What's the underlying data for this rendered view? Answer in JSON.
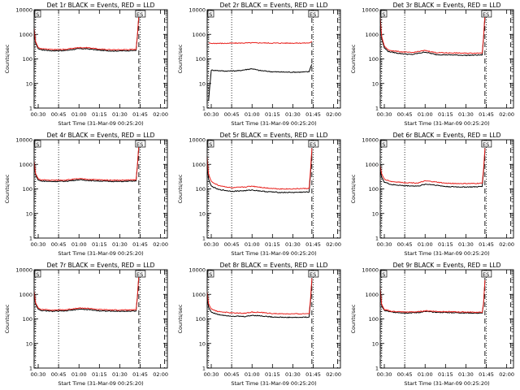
{
  "colors": {
    "events": "#000000",
    "lld": "#e8211d",
    "axes": "#000000",
    "background": "#ffffff"
  },
  "chart_data": [
    {
      "type": "line",
      "title": "Det 1r BLACK = Events, RED = LLD",
      "xlabel": "Start Time (31-Mar-09 00:25:20)",
      "ylabel": "Counts/sec",
      "x_tick_labels": [
        "00:30",
        "00:45",
        "01:00",
        "01:15",
        "01:30",
        "01:45",
        "02:00"
      ],
      "y_tick_labels": [
        "1",
        "10",
        "100",
        "1000",
        "10000"
      ],
      "y_scale": "log",
      "ylim": [
        1,
        10000
      ],
      "start_marker": "S",
      "end_marker": "ES",
      "series": [
        {
          "name": "Events",
          "x": [
            "00:27",
            "00:28",
            "00:30",
            "00:32",
            "00:40",
            "00:50",
            "01:00",
            "01:07",
            "01:15",
            "01:25",
            "01:35",
            "01:42",
            "01:43",
            "01:44"
          ],
          "values": [
            1500,
            450,
            260,
            235,
            215,
            220,
            260,
            255,
            225,
            210,
            215,
            220,
            900,
            5500
          ]
        },
        {
          "name": "LLD",
          "x": [
            "00:27",
            "00:28",
            "00:30",
            "00:32",
            "00:40",
            "00:50",
            "01:00",
            "01:07",
            "01:15",
            "01:25",
            "01:35",
            "01:42",
            "01:43",
            "01:44"
          ],
          "values": [
            1800,
            520,
            290,
            260,
            240,
            245,
            290,
            285,
            250,
            235,
            240,
            245,
            1000,
            6000
          ]
        }
      ]
    },
    {
      "type": "line",
      "title": "Det 2r BLACK = Events, RED = LLD",
      "xlabel": "Start Time (31-Mar-09 00:25:20)",
      "ylabel": "Counts/sec",
      "x_tick_labels": [
        "00:30",
        "00:45",
        "01:00",
        "01:15",
        "01:30",
        "01:45",
        "02:00"
      ],
      "y_tick_labels": [
        "1",
        "10",
        "100",
        "1000",
        "10000"
      ],
      "y_scale": "log",
      "ylim": [
        1,
        10000
      ],
      "start_marker": "S",
      "end_marker": "ES",
      "series": [
        {
          "name": "Events",
          "x": [
            "00:28",
            "00:30",
            "00:40",
            "00:50",
            "01:00",
            "01:05",
            "01:15",
            "01:25",
            "01:35",
            "01:42",
            "01:43",
            "01:44"
          ],
          "values": [
            2,
            35,
            32,
            33,
            40,
            34,
            30,
            29,
            29,
            30,
            45,
            60
          ]
        },
        {
          "name": "LLD",
          "x": [
            "00:28",
            "00:30",
            "00:40",
            "00:50",
            "01:00",
            "01:05",
            "01:15",
            "01:25",
            "01:35",
            "01:42",
            "01:43",
            "01:44"
          ],
          "values": [
            450,
            430,
            430,
            440,
            450,
            450,
            440,
            440,
            440,
            445,
            470,
            520
          ]
        }
      ]
    },
    {
      "type": "line",
      "title": "Det 3r BLACK = Events, RED = LLD",
      "xlabel": "Start Time (31-Mar-09 00:25:20)",
      "ylabel": "Counts/sec",
      "x_tick_labels": [
        "00:30",
        "00:45",
        "01:00",
        "01:15",
        "01:30",
        "01:45",
        "02:00"
      ],
      "y_tick_labels": [
        "1",
        "10",
        "100",
        "1000",
        "10000"
      ],
      "y_scale": "log",
      "ylim": [
        1,
        10000
      ],
      "start_marker": "S",
      "end_marker": "ES",
      "series": [
        {
          "name": "Events",
          "x": [
            "00:27",
            "00:28",
            "00:30",
            "00:33",
            "00:40",
            "00:50",
            "01:00",
            "01:08",
            "01:20",
            "01:30",
            "01:42",
            "01:43",
            "01:44"
          ],
          "values": [
            4000,
            700,
            280,
            200,
            170,
            150,
            190,
            150,
            145,
            140,
            145,
            700,
            5500
          ]
        },
        {
          "name": "LLD",
          "x": [
            "00:27",
            "00:28",
            "00:30",
            "00:33",
            "00:40",
            "00:50",
            "01:00",
            "01:08",
            "01:20",
            "01:30",
            "01:42",
            "01:43",
            "01:44"
          ],
          "values": [
            5000,
            850,
            330,
            230,
            200,
            180,
            220,
            180,
            175,
            170,
            175,
            800,
            6500
          ]
        }
      ]
    },
    {
      "type": "line",
      "title": "Det 4r BLACK = Events, RED = LLD",
      "xlabel": "Start Time (31-Mar-09 00:25:20)",
      "ylabel": "Counts/sec",
      "x_tick_labels": [
        "00:30",
        "00:45",
        "01:00",
        "01:15",
        "01:30",
        "01:45",
        "02:00"
      ],
      "y_tick_labels": [
        "1",
        "10",
        "100",
        "1000",
        "10000"
      ],
      "y_scale": "log",
      "ylim": [
        1,
        10000
      ],
      "start_marker": "S",
      "end_marker": "ES",
      "series": [
        {
          "name": "Events",
          "x": [
            "00:27",
            "00:28",
            "00:30",
            "00:32",
            "00:40",
            "00:50",
            "01:00",
            "01:10",
            "01:20",
            "01:30",
            "01:42",
            "01:43",
            "01:44"
          ],
          "values": [
            1200,
            380,
            230,
            210,
            200,
            205,
            235,
            215,
            205,
            200,
            210,
            900,
            5500
          ]
        },
        {
          "name": "LLD",
          "x": [
            "00:27",
            "00:28",
            "00:30",
            "00:32",
            "00:40",
            "00:50",
            "01:00",
            "01:10",
            "01:20",
            "01:30",
            "01:42",
            "01:43",
            "01:44"
          ],
          "values": [
            1400,
            430,
            260,
            235,
            225,
            230,
            260,
            240,
            230,
            225,
            235,
            1000,
            6000
          ]
        }
      ]
    },
    {
      "type": "line",
      "title": "Det 5r BLACK = Events, RED = LLD",
      "xlabel": "Start Time (31-Mar-09 00:25:20)",
      "ylabel": "Counts/sec",
      "x_tick_labels": [
        "00:30",
        "00:45",
        "01:00",
        "01:15",
        "01:30",
        "01:45",
        "02:00"
      ],
      "y_tick_labels": [
        "1",
        "10",
        "100",
        "1000",
        "10000"
      ],
      "y_scale": "log",
      "ylim": [
        1,
        10000
      ],
      "start_marker": "S",
      "end_marker": "ES",
      "series": [
        {
          "name": "Events",
          "x": [
            "00:27",
            "00:28",
            "00:30",
            "00:35",
            "00:45",
            "00:55",
            "01:00",
            "01:10",
            "01:20",
            "01:30",
            "01:42",
            "01:43",
            "01:44"
          ],
          "values": [
            1200,
            250,
            130,
            95,
            80,
            85,
            90,
            78,
            72,
            72,
            75,
            400,
            3000
          ]
        },
        {
          "name": "LLD",
          "x": [
            "00:27",
            "00:28",
            "00:30",
            "00:35",
            "00:45",
            "00:55",
            "01:00",
            "01:10",
            "01:20",
            "01:30",
            "01:42",
            "01:43",
            "01:44"
          ],
          "values": [
            2000,
            400,
            200,
            140,
            110,
            120,
            130,
            110,
            100,
            100,
            105,
            600,
            4500
          ]
        }
      ]
    },
    {
      "type": "line",
      "title": "Det 6r BLACK = Events, RED = LLD",
      "xlabel": "Start Time (31-Mar-09 00:25:20)",
      "ylabel": "Counts/sec",
      "x_tick_labels": [
        "00:30",
        "00:45",
        "01:00",
        "01:15",
        "01:30",
        "01:45",
        "02:00"
      ],
      "y_tick_labels": [
        "1",
        "10",
        "100",
        "1000",
        "10000"
      ],
      "y_scale": "log",
      "ylim": [
        1,
        10000
      ],
      "start_marker": "S",
      "end_marker": "ES",
      "series": [
        {
          "name": "Events",
          "x": [
            "00:27",
            "00:28",
            "00:30",
            "00:35",
            "00:45",
            "00:55",
            "01:00",
            "01:05",
            "01:15",
            "01:25",
            "01:35",
            "01:42",
            "01:43",
            "01:44"
          ],
          "values": [
            600,
            300,
            190,
            150,
            135,
            130,
            155,
            150,
            125,
            120,
            120,
            125,
            500,
            3500
          ]
        },
        {
          "name": "LLD",
          "x": [
            "00:27",
            "00:28",
            "00:30",
            "00:35",
            "00:45",
            "00:55",
            "01:00",
            "01:05",
            "01:15",
            "01:25",
            "01:35",
            "01:42",
            "01:43",
            "01:44"
          ],
          "values": [
            900,
            420,
            250,
            200,
            180,
            175,
            210,
            200,
            170,
            165,
            165,
            170,
            650,
            4500
          ]
        }
      ]
    },
    {
      "type": "line",
      "title": "Det 7r BLACK = Events, RED = LLD",
      "xlabel": "Start Time (31-Mar-09 00:25:20)",
      "ylabel": "Counts/sec",
      "x_tick_labels": [
        "00:30",
        "00:45",
        "01:00",
        "01:15",
        "01:30",
        "01:45",
        "02:00"
      ],
      "y_tick_labels": [
        "1",
        "10",
        "100",
        "1000",
        "10000"
      ],
      "y_scale": "log",
      "ylim": [
        1,
        10000
      ],
      "start_marker": "S",
      "end_marker": "ES",
      "series": [
        {
          "name": "Events",
          "x": [
            "00:27",
            "00:28",
            "00:30",
            "00:32",
            "00:40",
            "00:50",
            "01:00",
            "01:08",
            "01:15",
            "01:25",
            "01:35",
            "01:42",
            "01:43",
            "01:44"
          ],
          "values": [
            1200,
            400,
            250,
            220,
            205,
            210,
            250,
            235,
            215,
            205,
            205,
            210,
            800,
            5500
          ]
        },
        {
          "name": "LLD",
          "x": [
            "00:27",
            "00:28",
            "00:30",
            "00:32",
            "00:40",
            "00:50",
            "01:00",
            "01:08",
            "01:15",
            "01:25",
            "01:35",
            "01:42",
            "01:43",
            "01:44"
          ],
          "values": [
            1400,
            460,
            280,
            245,
            230,
            235,
            280,
            265,
            240,
            230,
            230,
            235,
            900,
            6000
          ]
        }
      ]
    },
    {
      "type": "line",
      "title": "Det 8r BLACK = Events, RED = LLD",
      "xlabel": "Start Time (31-Mar-09 00:25:20)",
      "ylabel": "Counts/sec",
      "x_tick_labels": [
        "00:30",
        "00:45",
        "01:00",
        "01:15",
        "01:30",
        "01:45",
        "02:00"
      ],
      "y_tick_labels": [
        "1",
        "10",
        "100",
        "1000",
        "10000"
      ],
      "y_scale": "log",
      "ylim": [
        1,
        10000
      ],
      "start_marker": "S",
      "end_marker": "ES",
      "series": [
        {
          "name": "Events",
          "x": [
            "00:27",
            "00:28",
            "00:30",
            "00:35",
            "00:45",
            "00:55",
            "01:00",
            "01:05",
            "01:15",
            "01:25",
            "01:35",
            "01:42",
            "01:43",
            "01:44"
          ],
          "values": [
            900,
            300,
            190,
            150,
            130,
            125,
            140,
            135,
            120,
            115,
            115,
            120,
            500,
            3500
          ]
        },
        {
          "name": "LLD",
          "x": [
            "00:27",
            "00:28",
            "00:30",
            "00:35",
            "00:45",
            "00:55",
            "01:00",
            "01:05",
            "01:15",
            "01:25",
            "01:35",
            "01:42",
            "01:43",
            "01:44"
          ],
          "values": [
            1300,
            420,
            250,
            200,
            175,
            170,
            190,
            185,
            165,
            160,
            160,
            165,
            650,
            4500
          ]
        }
      ]
    },
    {
      "type": "line",
      "title": "Det 9r BLACK = Events, RED = LLD",
      "xlabel": "Start Time (31-Mar-09 00:25:20)",
      "ylabel": "Counts/sec",
      "x_tick_labels": [
        "00:30",
        "00:45",
        "01:00",
        "01:15",
        "01:30",
        "01:45",
        "02:00"
      ],
      "y_tick_labels": [
        "1",
        "10",
        "100",
        "1000",
        "10000"
      ],
      "y_scale": "log",
      "ylim": [
        1,
        10000
      ],
      "start_marker": "S",
      "end_marker": "ES",
      "series": [
        {
          "name": "Events",
          "x": [
            "00:27",
            "00:28",
            "00:30",
            "00:35",
            "00:45",
            "00:55",
            "01:00",
            "01:10",
            "01:20",
            "01:30",
            "01:42",
            "01:43",
            "01:44"
          ],
          "values": [
            1500,
            350,
            220,
            190,
            175,
            180,
            200,
            185,
            180,
            175,
            170,
            400,
            3500
          ]
        },
        {
          "name": "LLD",
          "x": [
            "00:27",
            "00:28",
            "00:30",
            "00:35",
            "00:45",
            "00:55",
            "01:00",
            "01:10",
            "01:20",
            "01:30",
            "01:42",
            "01:43",
            "01:44"
          ],
          "values": [
            1800,
            400,
            240,
            205,
            190,
            195,
            215,
            200,
            195,
            190,
            185,
            450,
            3800
          ]
        }
      ]
    }
  ]
}
